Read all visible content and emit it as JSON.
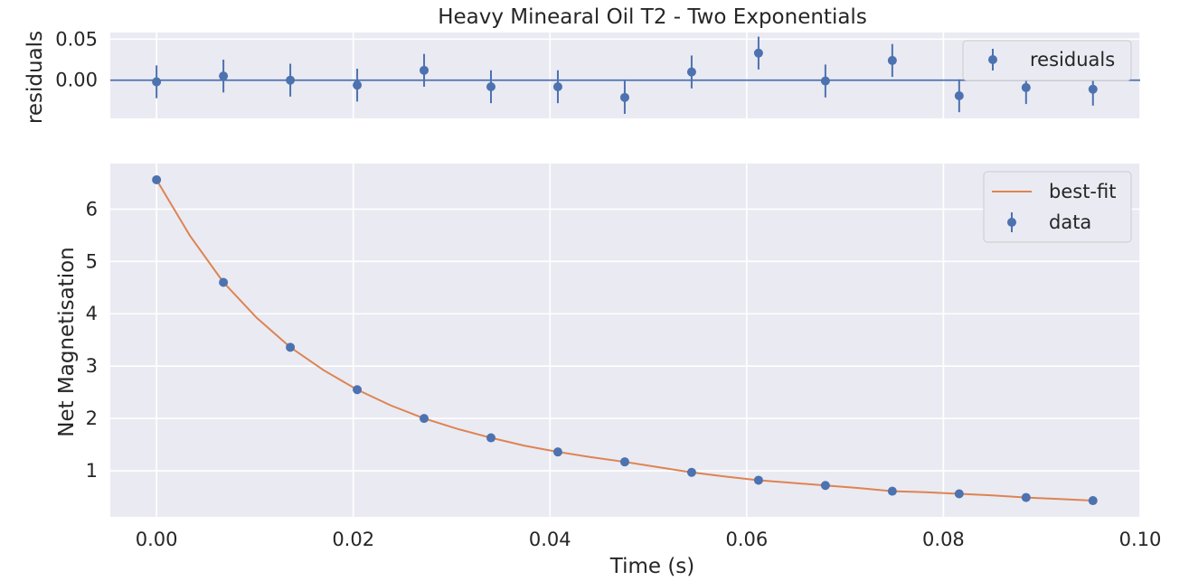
{
  "chart_data": [
    {
      "panel": "residuals",
      "type": "scatter",
      "title": "Heavy Minearal Oil T2 - Two Exponentials",
      "ylabel": "residuals",
      "xlim": [
        -0.0047,
        0.1
      ],
      "ylim": [
        -0.0465,
        0.058
      ],
      "yticks": [
        0.0,
        0.05
      ],
      "ytick_labels": [
        "0.00",
        "0.05"
      ],
      "grid": true,
      "legend_position": "top-right",
      "zero_line": 0,
      "series": [
        {
          "name": "residuals",
          "color": "#4c72b0",
          "x": [
            0.0,
            0.0068,
            0.0136,
            0.0204,
            0.0272,
            0.034,
            0.0408,
            0.0476,
            0.0544,
            0.0612,
            0.068,
            0.0748,
            0.0816,
            0.0884,
            0.0952
          ],
          "y": [
            -0.002,
            0.005,
            0.0,
            -0.006,
            0.012,
            -0.008,
            -0.008,
            -0.021,
            0.01,
            0.033,
            -0.001,
            0.024,
            -0.019,
            -0.009,
            -0.011
          ],
          "yerr": [
            0.02,
            0.02,
            0.02,
            0.02,
            0.02,
            0.02,
            0.02,
            0.02,
            0.02,
            0.02,
            0.02,
            0.02,
            0.02,
            0.02,
            0.02
          ]
        }
      ]
    },
    {
      "panel": "main",
      "type": "line",
      "xlabel": "Time (s)",
      "ylabel": "Net Magnetisation",
      "xlim": [
        -0.0047,
        0.1
      ],
      "ylim": [
        0.12,
        6.87
      ],
      "xticks": [
        0.0,
        0.02,
        0.04,
        0.06,
        0.08,
        0.1
      ],
      "xtick_labels": [
        "0.00",
        "0.02",
        "0.04",
        "0.06",
        "0.08",
        "0.10"
      ],
      "yticks": [
        1,
        2,
        3,
        4,
        5,
        6
      ],
      "ytick_labels": [
        "1",
        "2",
        "3",
        "4",
        "5",
        "6"
      ],
      "grid": true,
      "legend_position": "top-right",
      "series": [
        {
          "name": "best-fit",
          "kind": "line",
          "color": "#dd8452",
          "x": [
            0.0,
            0.0034,
            0.0068,
            0.0102,
            0.0136,
            0.017,
            0.0204,
            0.0238,
            0.0272,
            0.0306,
            0.034,
            0.0374,
            0.0408,
            0.0442,
            0.0476,
            0.051,
            0.0544,
            0.0578,
            0.0612,
            0.0646,
            0.068,
            0.0714,
            0.0748,
            0.0782,
            0.0816,
            0.085,
            0.0884,
            0.0918,
            0.0952
          ],
          "y": [
            6.56,
            5.49,
            4.6,
            3.92,
            3.36,
            2.92,
            2.55,
            2.25,
            2.0,
            1.8,
            1.63,
            1.48,
            1.36,
            1.26,
            1.17,
            1.07,
            0.97,
            0.89,
            0.82,
            0.77,
            0.72,
            0.67,
            0.61,
            0.59,
            0.56,
            0.53,
            0.49,
            0.46,
            0.43
          ]
        },
        {
          "name": "data",
          "kind": "errorbar",
          "color": "#4c72b0",
          "x": [
            0.0,
            0.0068,
            0.0136,
            0.0204,
            0.0272,
            0.034,
            0.0408,
            0.0476,
            0.0544,
            0.0612,
            0.068,
            0.0748,
            0.0816,
            0.0884,
            0.0952
          ],
          "y": [
            6.56,
            4.6,
            3.36,
            2.55,
            2.0,
            1.63,
            1.36,
            1.17,
            0.97,
            0.82,
            0.72,
            0.61,
            0.56,
            0.49,
            0.43
          ]
        }
      ]
    }
  ]
}
